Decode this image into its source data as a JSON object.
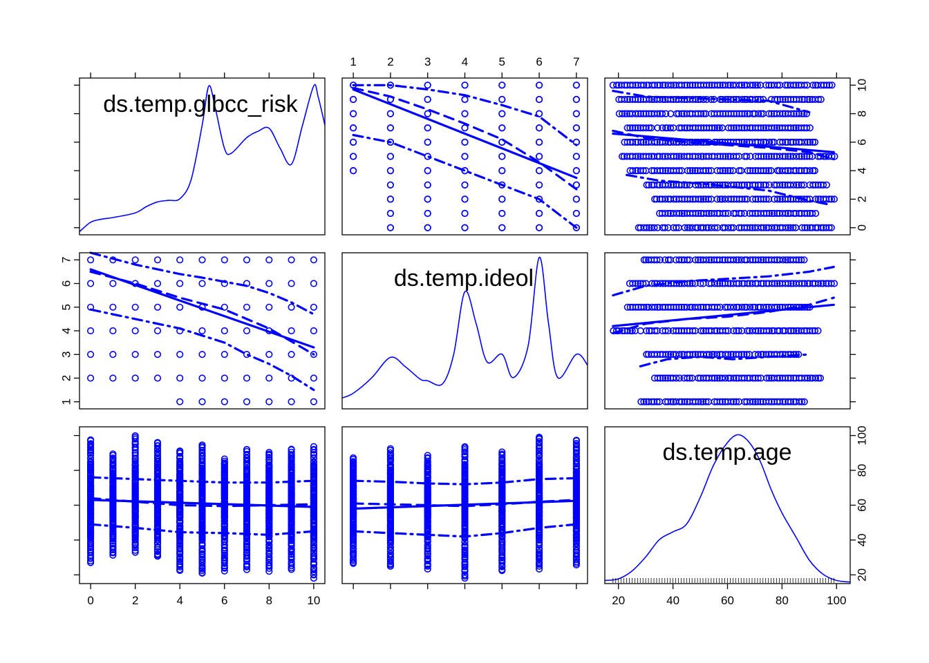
{
  "chart_data": {
    "type": "scatter",
    "title": "",
    "variables": [
      "ds.temp.glbcc_risk",
      "ds.temp.ideol",
      "ds.temp.age"
    ],
    "color": "#0000ff",
    "layout": "3x3 scatterplot matrix with kernel density curves on the diagonal, linear fit (solid), smoothed fit (dashed) and spread bands (dot-dash)",
    "axes": {
      "ds.temp.glbcc_risk": {
        "range": [
          -0.5,
          10.5
        ],
        "ticks": [
          "0",
          "2",
          "4",
          "6",
          "8",
          "10"
        ]
      },
      "ds.temp.ideol": {
        "range": [
          0.7,
          7.3
        ],
        "ticks": [
          "1",
          "2",
          "3",
          "4",
          "5",
          "6",
          "7"
        ]
      },
      "ds.temp.age": {
        "range": [
          15,
          105
        ],
        "ticks": [
          "20",
          "40",
          "60",
          "80",
          "100"
        ]
      }
    },
    "scatter_points": {
      "risk_vs_ideol": [
        [
          1,
          [
            4,
            5,
            6,
            7,
            8,
            9,
            10
          ]
        ],
        [
          2,
          [
            0,
            1,
            2,
            3,
            4,
            5,
            6,
            7,
            8,
            9,
            10
          ]
        ],
        [
          3,
          [
            0,
            1,
            2,
            3,
            4,
            5,
            6,
            7,
            8,
            9,
            10
          ]
        ],
        [
          4,
          [
            0,
            1,
            2,
            3,
            4,
            5,
            6,
            7,
            8,
            9,
            10
          ]
        ],
        [
          5,
          [
            0,
            1,
            2,
            3,
            4,
            5,
            6,
            7,
            8,
            9,
            10
          ]
        ],
        [
          6,
          [
            0,
            1,
            2,
            3,
            4,
            5,
            6,
            7,
            8,
            9,
            10
          ]
        ],
        [
          7,
          [
            0,
            1,
            2,
            3,
            4,
            5,
            6,
            7,
            8,
            9,
            10
          ]
        ]
      ],
      "risk_age_rows": [
        [
          10,
          [
            18,
            98
          ]
        ],
        [
          9,
          [
            20,
            94
          ]
        ],
        [
          8,
          [
            20,
            89
          ]
        ],
        [
          7,
          [
            23,
            90
          ]
        ],
        [
          6,
          [
            22,
            92
          ]
        ],
        [
          5,
          [
            21,
            99
          ]
        ],
        [
          4,
          [
            24,
            92
          ]
        ],
        [
          3,
          [
            30,
            96
          ]
        ],
        [
          2,
          [
            33,
            99
          ]
        ],
        [
          1,
          [
            35,
            92
          ]
        ],
        [
          0,
          [
            27,
            98
          ]
        ]
      ],
      "ideol_age_rows": [
        [
          7,
          [
            29,
            88
          ]
        ],
        [
          6,
          [
            24,
            99
          ]
        ],
        [
          5,
          [
            23,
            90
          ]
        ],
        [
          4,
          [
            18,
            93
          ]
        ],
        [
          3,
          [
            30,
            86
          ]
        ],
        [
          2,
          [
            33,
            94
          ]
        ],
        [
          1,
          [
            28,
            88
          ]
        ]
      ],
      "age_ranges_by_risk": [
        [
          0,
          [
            27,
            97
          ]
        ],
        [
          1,
          [
            31,
            89
          ]
        ],
        [
          2,
          [
            33,
            99
          ]
        ],
        [
          3,
          [
            30,
            96
          ]
        ],
        [
          4,
          [
            22,
            91
          ]
        ],
        [
          5,
          [
            20,
            94
          ]
        ],
        [
          6,
          [
            22,
            86
          ]
        ],
        [
          7,
          [
            23,
            92
          ]
        ],
        [
          8,
          [
            22,
            90
          ]
        ],
        [
          9,
          [
            23,
            92
          ]
        ],
        [
          10,
          [
            18,
            93
          ]
        ]
      ],
      "age_ranges_by_ideol": [
        [
          1,
          [
            26,
            87
          ]
        ],
        [
          2,
          [
            24,
            92
          ]
        ],
        [
          3,
          [
            23,
            88
          ]
        ],
        [
          4,
          [
            18,
            93
          ]
        ],
        [
          5,
          [
            22,
            90
          ]
        ],
        [
          6,
          [
            23,
            99
          ]
        ],
        [
          7,
          [
            25,
            97
          ]
        ]
      ]
    },
    "fits": {
      "risk_by_ideol": {
        "linear": [
          [
            1,
            9.7
          ],
          [
            7,
            3.5
          ]
        ],
        "smooth": [
          [
            1,
            9.8
          ],
          [
            2,
            9.2
          ],
          [
            3,
            8.3
          ],
          [
            4,
            7.3
          ],
          [
            5,
            6.2
          ],
          [
            6,
            4.6
          ],
          [
            7,
            2.7
          ]
        ],
        "upper": [
          [
            1,
            10.0
          ],
          [
            2,
            10.0
          ],
          [
            3,
            9.7
          ],
          [
            4,
            9.3
          ],
          [
            5,
            8.6
          ],
          [
            6,
            7.8
          ],
          [
            7,
            5.8
          ]
        ],
        "lower": [
          [
            1,
            6.5
          ],
          [
            2,
            6.0
          ],
          [
            3,
            5.0
          ],
          [
            4,
            4.0
          ],
          [
            5,
            3.0
          ],
          [
            6,
            2.0
          ],
          [
            7,
            0.0
          ]
        ]
      },
      "risk_by_age": {
        "linear": [
          [
            18,
            6.6
          ],
          [
            99,
            5.3
          ]
        ],
        "smooth": [
          [
            18,
            6.8
          ],
          [
            30,
            6.3
          ],
          [
            45,
            6.0
          ],
          [
            60,
            5.8
          ],
          [
            75,
            5.6
          ],
          [
            90,
            5.3
          ],
          [
            99,
            4.8
          ]
        ],
        "upper": [
          [
            18,
            9.6
          ],
          [
            30,
            9.2
          ],
          [
            45,
            9.1
          ],
          [
            60,
            9.0
          ],
          [
            75,
            8.9
          ],
          [
            90,
            8.1
          ]
        ],
        "lower": [
          [
            23,
            3.7
          ],
          [
            35,
            3.3
          ],
          [
            50,
            3.1
          ],
          [
            60,
            2.9
          ],
          [
            75,
            2.6
          ],
          [
            90,
            1.9
          ],
          [
            98,
            1.6
          ]
        ]
      },
      "ideol_by_risk": {
        "linear": [
          [
            0,
            6.6
          ],
          [
            10,
            3.3
          ]
        ],
        "smooth": [
          [
            0,
            6.5
          ],
          [
            2,
            6.0
          ],
          [
            4,
            5.4
          ],
          [
            6,
            4.9
          ],
          [
            8,
            4.1
          ],
          [
            10,
            3.0
          ]
        ],
        "upper": [
          [
            0,
            7.3
          ],
          [
            2,
            6.8
          ],
          [
            4,
            6.4
          ],
          [
            5,
            6.25
          ],
          [
            7,
            5.9
          ],
          [
            8,
            5.6
          ],
          [
            9,
            5.2
          ],
          [
            10,
            4.7
          ]
        ],
        "lower": [
          [
            0,
            4.9
          ],
          [
            2,
            4.5
          ],
          [
            4,
            4.1
          ],
          [
            6,
            3.5
          ],
          [
            7,
            3.0
          ],
          [
            8,
            2.6
          ],
          [
            9,
            2.1
          ],
          [
            10,
            1.5
          ]
        ]
      },
      "ideol_by_age": {
        "linear": [
          [
            18,
            4.2
          ],
          [
            99,
            5.1
          ]
        ],
        "smooth": [
          [
            18,
            3.9
          ],
          [
            30,
            4.3
          ],
          [
            45,
            4.5
          ],
          [
            60,
            4.6
          ],
          [
            75,
            4.8
          ],
          [
            90,
            5.1
          ],
          [
            99,
            5.4
          ]
        ],
        "upper": [
          [
            18,
            5.5
          ],
          [
            30,
            5.9
          ],
          [
            45,
            6.1
          ],
          [
            60,
            6.2
          ],
          [
            75,
            6.3
          ],
          [
            90,
            6.5
          ],
          [
            99,
            6.7
          ]
        ],
        "lower": [
          [
            28,
            2.5
          ],
          [
            38,
            2.8
          ],
          [
            50,
            2.9
          ],
          [
            62,
            2.8
          ],
          [
            75,
            2.9
          ],
          [
            90,
            3.0
          ]
        ]
      },
      "age_by_risk": {
        "linear": [
          [
            0,
            63
          ],
          [
            10,
            59
          ]
        ],
        "smooth": [
          [
            0,
            64
          ],
          [
            2,
            62
          ],
          [
            4,
            60
          ],
          [
            6,
            59.5
          ],
          [
            8,
            60
          ],
          [
            10,
            60.5
          ]
        ],
        "upper": [
          [
            0,
            76
          ],
          [
            2,
            75
          ],
          [
            4,
            74
          ],
          [
            6,
            73
          ],
          [
            8,
            73
          ],
          [
            10,
            74
          ]
        ],
        "lower": [
          [
            0,
            49
          ],
          [
            2,
            47
          ],
          [
            4,
            44.5
          ],
          [
            6,
            44
          ],
          [
            8,
            43
          ],
          [
            10,
            45
          ]
        ]
      },
      "age_by_ideol": {
        "linear": [
          [
            1,
            58
          ],
          [
            7,
            62.5
          ]
        ],
        "smooth": [
          [
            1,
            61
          ],
          [
            2,
            60.5
          ],
          [
            3,
            60
          ],
          [
            4,
            59.5
          ],
          [
            5,
            60.5
          ],
          [
            6,
            62
          ],
          [
            7,
            63
          ]
        ],
        "upper": [
          [
            1,
            74
          ],
          [
            2,
            73.5
          ],
          [
            3,
            72.5
          ],
          [
            4,
            72
          ],
          [
            5,
            73
          ],
          [
            6,
            75
          ],
          [
            7,
            75.5
          ]
        ],
        "lower": [
          [
            1,
            45
          ],
          [
            2,
            44
          ],
          [
            3,
            43
          ],
          [
            4,
            42
          ],
          [
            5,
            44
          ],
          [
            6,
            47
          ],
          [
            7,
            49
          ]
        ]
      }
    },
    "densities": {
      "ds.temp.glbcc_risk": [
        [
          -0.5,
          0.02
        ],
        [
          0,
          0.08
        ],
        [
          0.5,
          0.1
        ],
        [
          1,
          0.11
        ],
        [
          2,
          0.14
        ],
        [
          2.5,
          0.18
        ],
        [
          3,
          0.21
        ],
        [
          3.5,
          0.22
        ],
        [
          4,
          0.23
        ],
        [
          4.5,
          0.35
        ],
        [
          5,
          0.7
        ],
        [
          5.3,
          0.95
        ],
        [
          5.6,
          0.8
        ],
        [
          6,
          0.55
        ],
        [
          6.3,
          0.52
        ],
        [
          7,
          0.62
        ],
        [
          7.5,
          0.66
        ],
        [
          8,
          0.68
        ],
        [
          8.5,
          0.55
        ],
        [
          9,
          0.45
        ],
        [
          9.5,
          0.7
        ],
        [
          10,
          0.95
        ],
        [
          10.2,
          0.88
        ],
        [
          10.5,
          0.7
        ]
      ],
      "ds.temp.ideol": [
        [
          0.7,
          0.07
        ],
        [
          1,
          0.1
        ],
        [
          1.5,
          0.2
        ],
        [
          2,
          0.33
        ],
        [
          2.4,
          0.27
        ],
        [
          2.8,
          0.19
        ],
        [
          3,
          0.18
        ],
        [
          3.4,
          0.16
        ],
        [
          3.7,
          0.35
        ],
        [
          4,
          0.75
        ],
        [
          4.3,
          0.55
        ],
        [
          4.6,
          0.3
        ],
        [
          5,
          0.35
        ],
        [
          5.3,
          0.2
        ],
        [
          5.7,
          0.4
        ],
        [
          6,
          0.97
        ],
        [
          6.25,
          0.55
        ],
        [
          6.5,
          0.2
        ],
        [
          7,
          0.35
        ],
        [
          7.3,
          0.28
        ]
      ],
      "ds.temp.age": [
        [
          15,
          0.02
        ],
        [
          20,
          0.03
        ],
        [
          25,
          0.08
        ],
        [
          30,
          0.17
        ],
        [
          35,
          0.28
        ],
        [
          40,
          0.33
        ],
        [
          45,
          0.38
        ],
        [
          50,
          0.55
        ],
        [
          55,
          0.76
        ],
        [
          60,
          0.9
        ],
        [
          64,
          0.95
        ],
        [
          68,
          0.9
        ],
        [
          72,
          0.78
        ],
        [
          76,
          0.6
        ],
        [
          80,
          0.45
        ],
        [
          85,
          0.3
        ],
        [
          90,
          0.15
        ],
        [
          95,
          0.06
        ],
        [
          100,
          0.02
        ],
        [
          105,
          0.01
        ]
      ]
    }
  }
}
